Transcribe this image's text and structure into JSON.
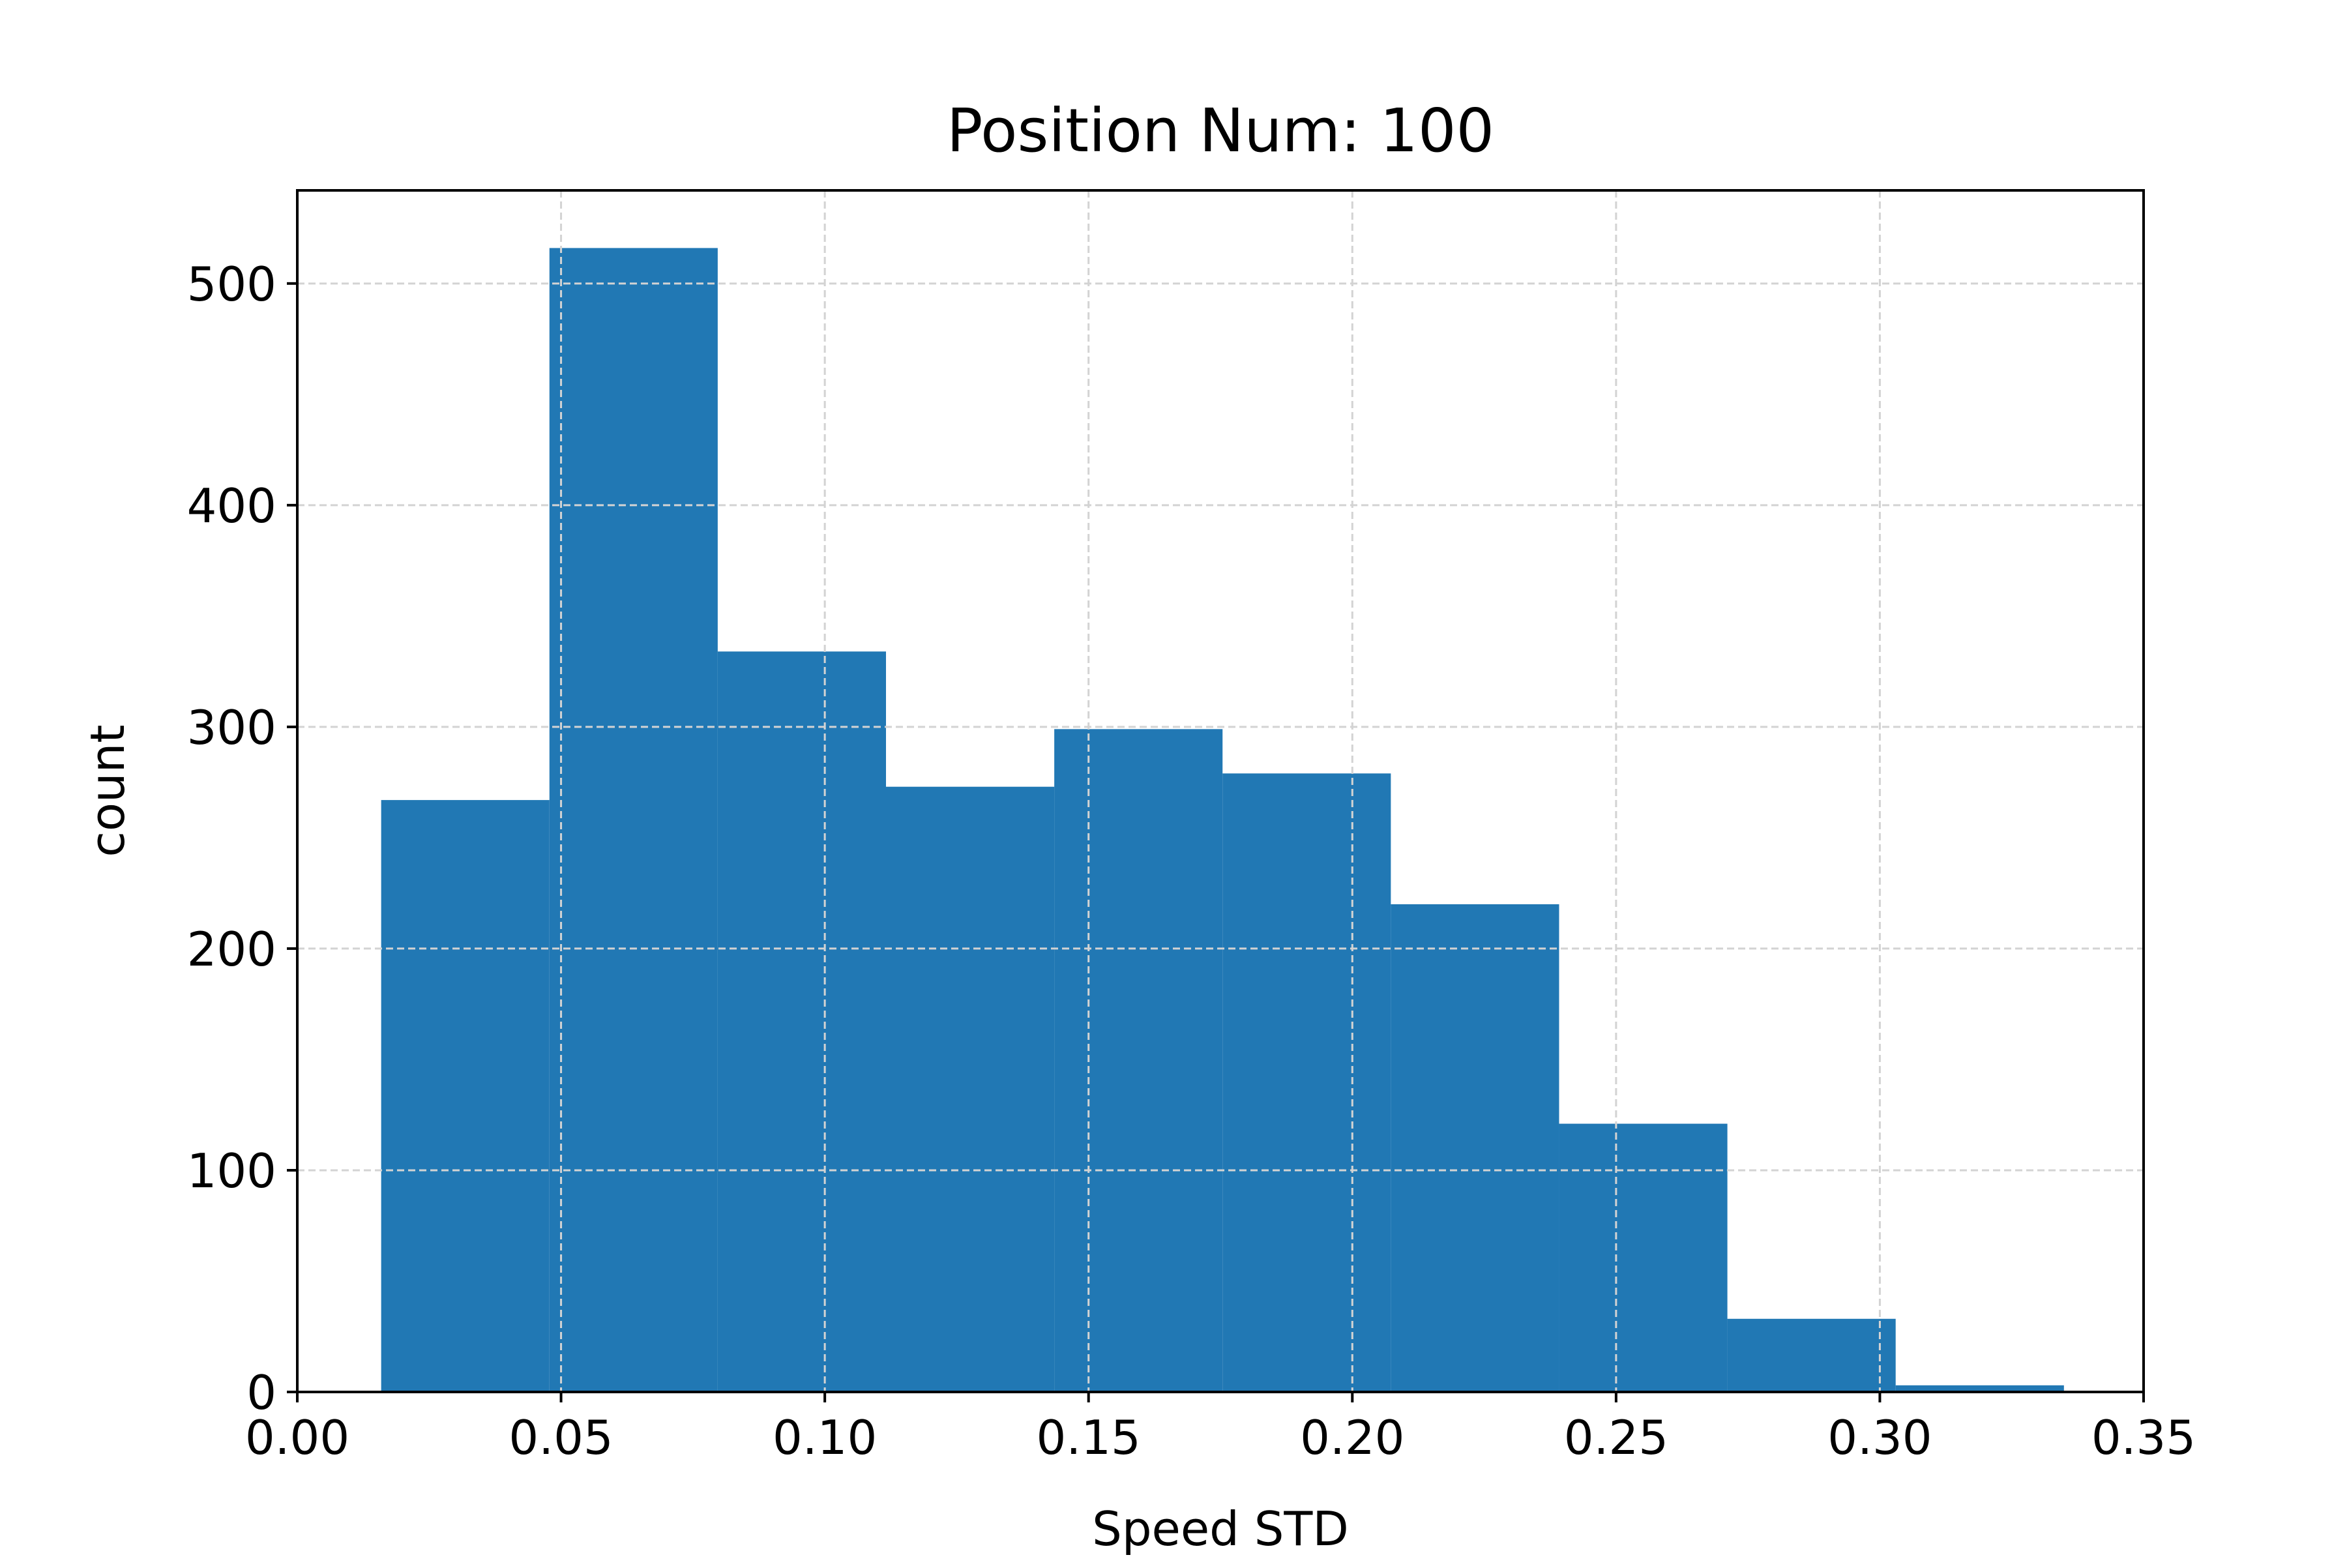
{
  "chart_data": {
    "type": "bar",
    "title": "Position Num: 100",
    "xlabel": "Speed STD",
    "ylabel": "count",
    "xlim": [
      0.0,
      0.35
    ],
    "ylim": [
      0,
      542
    ],
    "grid": true,
    "bar_color": "#2178b4",
    "grid_color": "#d3d3d3",
    "bins": [
      {
        "x0": 0.0159,
        "x1": 0.0478,
        "count": 267
      },
      {
        "x0": 0.0478,
        "x1": 0.0797,
        "count": 516
      },
      {
        "x0": 0.0797,
        "x1": 0.1116,
        "count": 334
      },
      {
        "x0": 0.1116,
        "x1": 0.1435,
        "count": 273
      },
      {
        "x0": 0.1435,
        "x1": 0.1754,
        "count": 299
      },
      {
        "x0": 0.1754,
        "x1": 0.2073,
        "count": 279
      },
      {
        "x0": 0.2073,
        "x1": 0.2392,
        "count": 220
      },
      {
        "x0": 0.2392,
        "x1": 0.2711,
        "count": 121
      },
      {
        "x0": 0.2711,
        "x1": 0.303,
        "count": 33
      },
      {
        "x0": 0.303,
        "x1": 0.3349,
        "count": 3
      }
    ],
    "xticks": [
      {
        "value": 0.0,
        "label": "0.00"
      },
      {
        "value": 0.05,
        "label": "0.05"
      },
      {
        "value": 0.1,
        "label": "0.10"
      },
      {
        "value": 0.15,
        "label": "0.15"
      },
      {
        "value": 0.2,
        "label": "0.20"
      },
      {
        "value": 0.25,
        "label": "0.25"
      },
      {
        "value": 0.3,
        "label": "0.30"
      },
      {
        "value": 0.35,
        "label": "0.35"
      }
    ],
    "yticks": [
      {
        "value": 0,
        "label": "0"
      },
      {
        "value": 100,
        "label": "100"
      },
      {
        "value": 200,
        "label": "200"
      },
      {
        "value": 300,
        "label": "300"
      },
      {
        "value": 400,
        "label": "400"
      },
      {
        "value": 500,
        "label": "500"
      }
    ]
  }
}
